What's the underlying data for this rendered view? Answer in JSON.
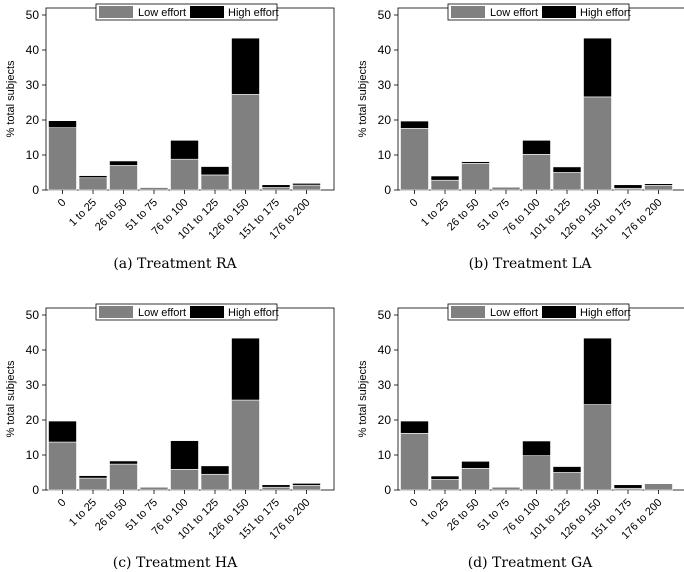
{
  "colors": {
    "low": "#808080",
    "high": "#000000",
    "axis": "#000000"
  },
  "chart_data": [
    {
      "type": "bar",
      "stacked": true,
      "caption": "(a) Treatment RA",
      "ylabel": "% total subjects",
      "ylim": [
        0,
        52
      ],
      "yticks": [
        0,
        10,
        20,
        30,
        40,
        50
      ],
      "legend_position": "top",
      "categories": [
        "0",
        "1 to 25",
        "26 to 50",
        "51 to 75",
        "76 to 100",
        "101 to 125",
        "126 to 150",
        "151 to 175",
        "176 to 200"
      ],
      "series": [
        {
          "name": "Low effort",
          "values": [
            17.8,
            3.5,
            7.0,
            0.7,
            8.8,
            4.3,
            27.3,
            0.7,
            1.4
          ]
        },
        {
          "name": "High effort",
          "values": [
            2.0,
            0.6,
            1.3,
            0.0,
            5.4,
            2.4,
            16.1,
            0.8,
            0.5
          ]
        }
      ]
    },
    {
      "type": "bar",
      "stacked": true,
      "caption": "(b) Treatment LA",
      "ylabel": "% total subjects",
      "ylim": [
        0,
        52
      ],
      "yticks": [
        0,
        10,
        20,
        30,
        40,
        50
      ],
      "legend_position": "top",
      "categories": [
        "0",
        "1 to 25",
        "26 to 50",
        "51 to 75",
        "76 to 100",
        "101 to 125",
        "126 to 150",
        "151 to 175",
        "176 to 200"
      ],
      "series": [
        {
          "name": "Low effort",
          "values": [
            17.6,
            2.8,
            7.6,
            0.8,
            10.2,
            5.0,
            26.6,
            0.5,
            1.3
          ]
        },
        {
          "name": "High effort",
          "values": [
            2.1,
            1.2,
            0.5,
            0.0,
            4.0,
            1.6,
            16.8,
            1.0,
            0.5
          ]
        }
      ]
    },
    {
      "type": "bar",
      "stacked": true,
      "caption": "(c) Treatment HA",
      "ylabel": "% total subjects",
      "ylim": [
        0,
        52
      ],
      "yticks": [
        0,
        10,
        20,
        30,
        40,
        50
      ],
      "legend_position": "top",
      "categories": [
        "0",
        "1 to 25",
        "26 to 50",
        "51 to 75",
        "76 to 100",
        "101 to 125",
        "126 to 150",
        "151 to 175",
        "176 to 200"
      ],
      "series": [
        {
          "name": "Low effort",
          "values": [
            13.7,
            3.4,
            7.4,
            0.8,
            5.9,
            4.5,
            25.7,
            0.8,
            1.3
          ]
        },
        {
          "name": "High effort",
          "values": [
            6.0,
            0.7,
            0.9,
            0.0,
            8.2,
            2.4,
            17.7,
            0.7,
            0.6
          ]
        }
      ]
    },
    {
      "type": "bar",
      "stacked": true,
      "caption": "(d) Treatment GA",
      "ylabel": "% total subjects",
      "ylim": [
        0,
        52
      ],
      "yticks": [
        0,
        10,
        20,
        30,
        40,
        50
      ],
      "legend_position": "top",
      "categories": [
        "0",
        "1 to 25",
        "26 to 50",
        "51 to 75",
        "76 to 100",
        "101 to 125",
        "126 to 150",
        "151 to 175",
        "176 to 200"
      ],
      "series": [
        {
          "name": "Low effort",
          "values": [
            16.2,
            3.0,
            6.2,
            0.8,
            9.8,
            5.0,
            24.4,
            0.5,
            1.8
          ]
        },
        {
          "name": "High effort",
          "values": [
            3.5,
            1.0,
            2.0,
            0.0,
            4.2,
            1.7,
            19.0,
            1.0,
            0.0
          ]
        }
      ]
    }
  ]
}
